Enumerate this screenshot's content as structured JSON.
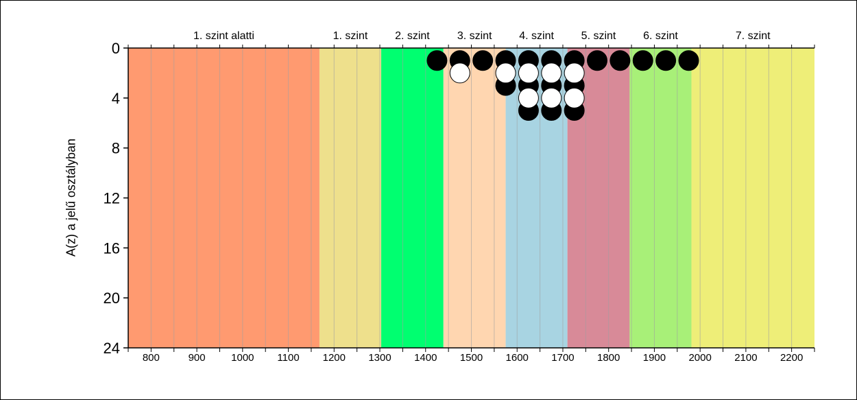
{
  "chart_data": {
    "type": "scatter",
    "ylabel": "A(z) a jelű osztályban",
    "xlim": [
      750,
      2250
    ],
    "ylim": [
      0,
      24
    ],
    "y_inverted": true,
    "x_ticks": [
      800,
      900,
      1000,
      1100,
      1200,
      1300,
      1400,
      1500,
      1600,
      1700,
      1800,
      1900,
      2000,
      2100,
      2200
    ],
    "y_ticks": [
      0,
      4,
      8,
      12,
      16,
      20,
      24
    ],
    "bands": [
      {
        "label": "1. szint alatti",
        "from": 750,
        "to": 1168,
        "color": "#FF9A70"
      },
      {
        "label": "1. szint",
        "from": 1168,
        "to": 1303,
        "color": "#EEE08C"
      },
      {
        "label": "2. szint",
        "from": 1303,
        "to": 1439,
        "color": "#00FF70"
      },
      {
        "label": "3. szint",
        "from": 1439,
        "to": 1575,
        "color": "#FFD6B0"
      },
      {
        "label": "4. szint",
        "from": 1575,
        "to": 1710,
        "color": "#A8D4E2"
      },
      {
        "label": "5. szint",
        "from": 1710,
        "to": 1846,
        "color": "#D88A98"
      },
      {
        "label": "6. szint",
        "from": 1846,
        "to": 1981,
        "color": "#A8F078"
      },
      {
        "label": "7. szint",
        "from": 1981,
        "to": 2250,
        "color": "#EEEE78"
      }
    ],
    "series": [
      {
        "color": "black",
        "points": [
          [
            1425,
            1
          ],
          [
            1475,
            1
          ],
          [
            1525,
            1
          ],
          [
            1575,
            1
          ],
          [
            1575,
            3
          ],
          [
            1625,
            1
          ],
          [
            1625,
            3
          ],
          [
            1625,
            5
          ],
          [
            1675,
            1
          ],
          [
            1675,
            3
          ],
          [
            1675,
            5
          ],
          [
            1725,
            1
          ],
          [
            1725,
            3
          ],
          [
            1725,
            5
          ],
          [
            1775,
            1
          ],
          [
            1825,
            1
          ],
          [
            1875,
            1
          ],
          [
            1925,
            1
          ],
          [
            1975,
            1
          ]
        ]
      },
      {
        "color": "white",
        "points": [
          [
            1475,
            2
          ],
          [
            1575,
            2
          ],
          [
            1625,
            2
          ],
          [
            1625,
            4
          ],
          [
            1675,
            2
          ],
          [
            1675,
            4
          ],
          [
            1725,
            2
          ],
          [
            1725,
            4
          ]
        ]
      }
    ]
  }
}
